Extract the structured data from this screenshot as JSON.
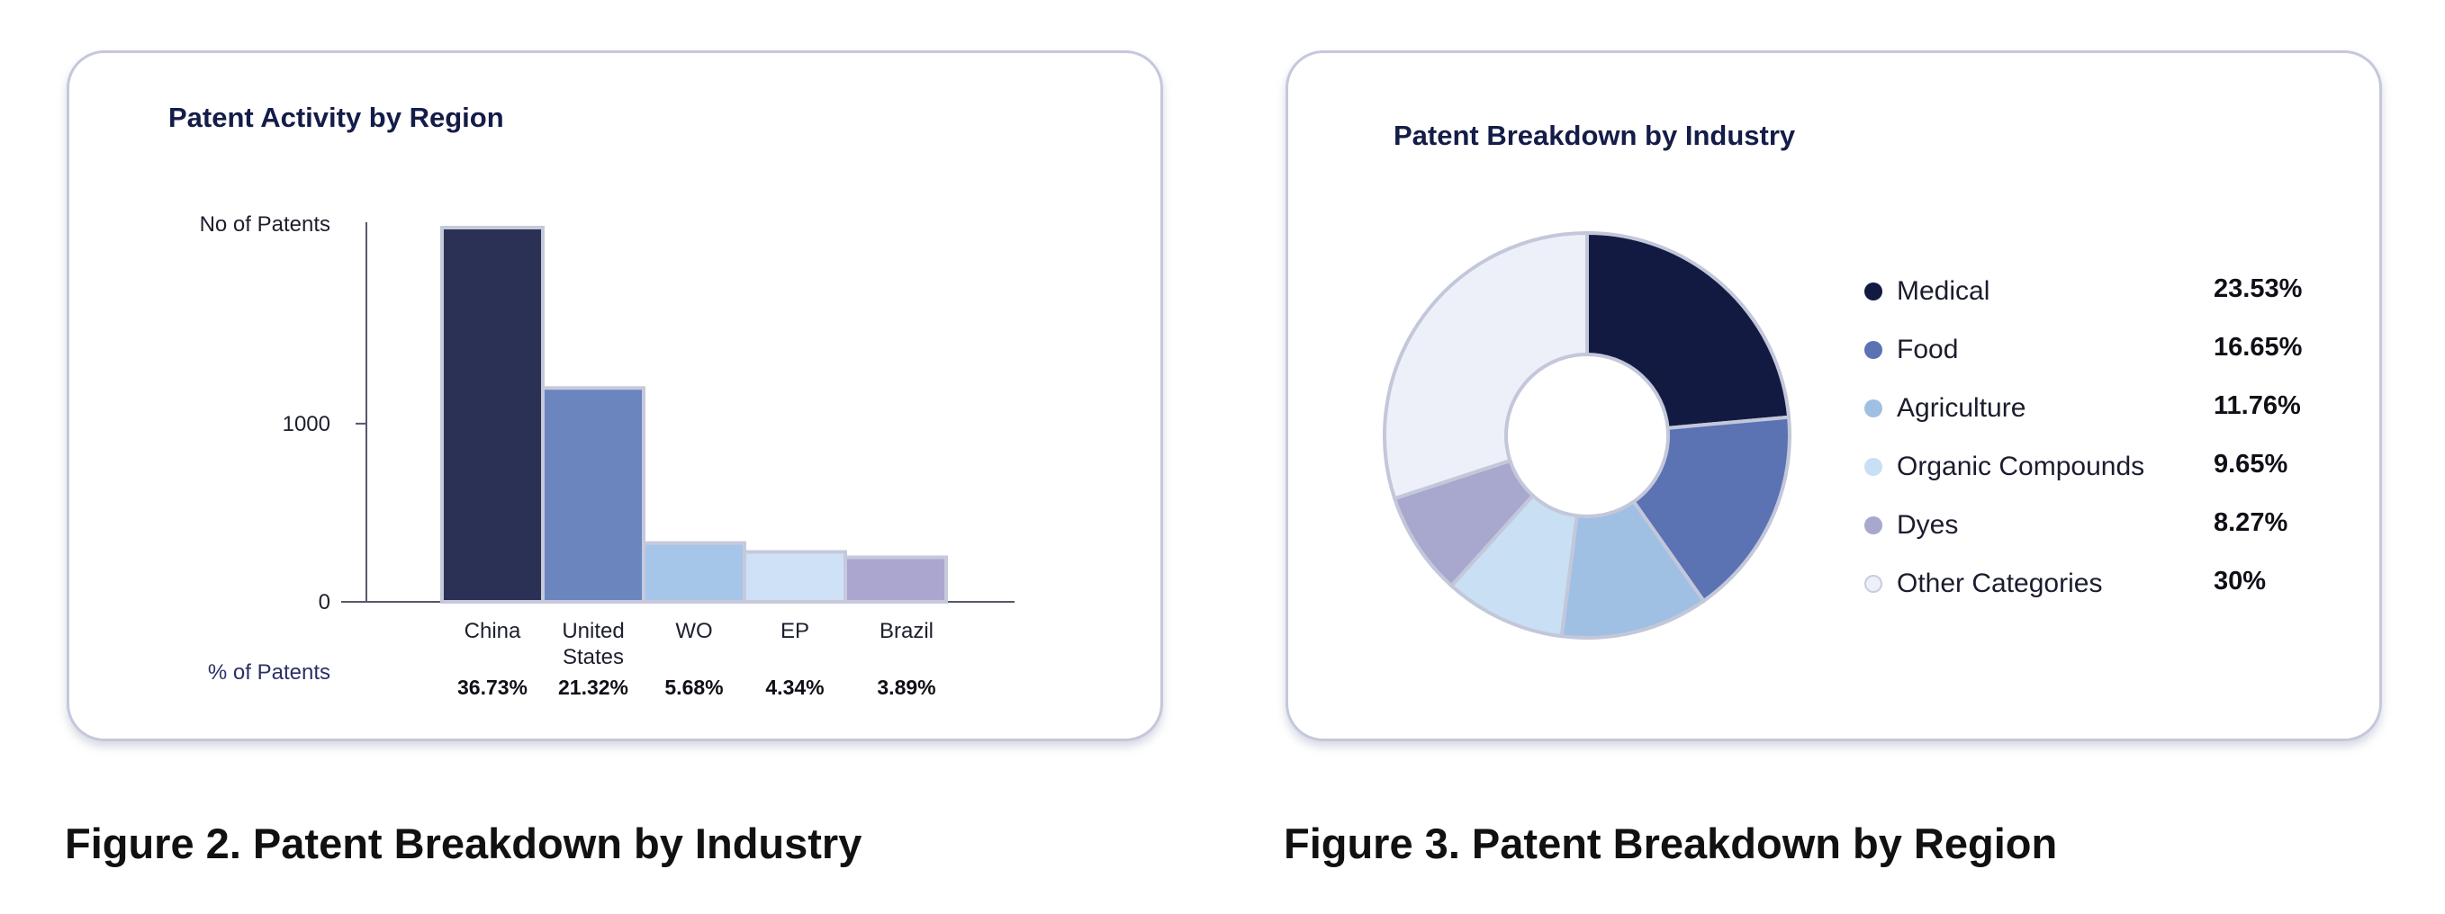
{
  "figures": {
    "left_caption": "Figure 2. Patent Breakdown by Industry",
    "right_caption": "Figure 3. Patent Breakdown by Region"
  },
  "chart_data": [
    {
      "type": "bar",
      "title": "Patent Activity by Region",
      "ylabel": "No of Patents",
      "xlabel": "",
      "ylim": [
        0,
        2100
      ],
      "yticks": [
        0,
        1000
      ],
      "categories": [
        "China",
        "United States",
        "WO",
        "EP",
        "Brazil"
      ],
      "values": [
        2100,
        1200,
        330,
        280,
        250
      ],
      "colors": [
        "#2b3154",
        "#6b85bf",
        "#a5c6e8",
        "#cfe1f6",
        "#aaa6cf"
      ],
      "secondary_row_label": "% of Patents",
      "percent_labels": [
        "36.73%",
        "21.32%",
        "5.68%",
        "4.34%",
        "3.89%"
      ],
      "grid": false,
      "legend": "none"
    },
    {
      "type": "pie",
      "style": "donut",
      "title": "Patent Breakdown by Industry",
      "labels": [
        "Medical",
        "Food",
        "Agriculture",
        "Organic Compounds",
        "Dyes",
        "Other Categories"
      ],
      "values": [
        23.53,
        16.65,
        11.76,
        9.65,
        8.27,
        30
      ],
      "value_labels": [
        "23.53%",
        "16.65%",
        "11.76%",
        "9.65%",
        "8.27%",
        "30%"
      ],
      "colors": [
        "#131a42",
        "#5b72b3",
        "#a0c0e3",
        "#c9dff3",
        "#a8a7ce",
        "#edf0f8"
      ],
      "legend": "right"
    }
  ]
}
